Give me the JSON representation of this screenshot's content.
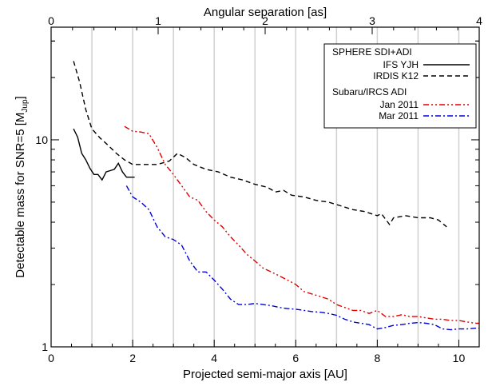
{
  "chart_data": {
    "type": "line",
    "title": "",
    "xlabel": "Projected semi-major axis [AU]",
    "x2label": "Angular separation [as]",
    "ylabel": "Detectable mass for SNR=5 [M",
    "ylabel_sub": "Jup",
    "ylabel_close": "]",
    "xlim": [
      0,
      10.5
    ],
    "x2lim": [
      0,
      4
    ],
    "ylim": [
      1,
      35
    ],
    "yscale": "log",
    "grid": "vertical",
    "xticks": [
      0,
      2,
      4,
      6,
      8,
      10
    ],
    "x2ticks": [
      0,
      1,
      2,
      3,
      4
    ],
    "yticks": [
      1,
      10
    ],
    "legend_position": "top-right",
    "legend_groups": [
      {
        "title": "SPHERE SDI+ADI",
        "entries": [
          "IFS YJH",
          "IRDIS K12"
        ]
      },
      {
        "title": "Subaru/IRCS ADI",
        "entries": [
          "Jan 2011",
          "Mar 2011"
        ]
      }
    ],
    "series": [
      {
        "name": "IFS YJH",
        "color": "#000000",
        "style": "solid",
        "points": [
          [
            0.55,
            11.3
          ],
          [
            0.65,
            10.3
          ],
          [
            0.75,
            8.6
          ],
          [
            0.85,
            8.0
          ],
          [
            0.95,
            7.3
          ],
          [
            1.05,
            6.8
          ],
          [
            1.15,
            6.8
          ],
          [
            1.25,
            6.4
          ],
          [
            1.35,
            7.0
          ],
          [
            1.45,
            7.1
          ],
          [
            1.55,
            7.2
          ],
          [
            1.65,
            7.7
          ],
          [
            1.75,
            7.0
          ],
          [
            1.85,
            6.6
          ],
          [
            1.95,
            6.6
          ],
          [
            2.05,
            6.6
          ]
        ]
      },
      {
        "name": "IRDIS K12",
        "color": "#000000",
        "style": "dashed",
        "points": [
          [
            0.55,
            24.0
          ],
          [
            0.7,
            19.0
          ],
          [
            0.85,
            14.0
          ],
          [
            1.0,
            11.3
          ],
          [
            1.2,
            10.2
          ],
          [
            1.4,
            9.4
          ],
          [
            1.6,
            8.6
          ],
          [
            1.8,
            8.0
          ],
          [
            2.0,
            7.6
          ],
          [
            2.3,
            7.6
          ],
          [
            2.6,
            7.6
          ],
          [
            2.9,
            7.9
          ],
          [
            3.1,
            8.6
          ],
          [
            3.3,
            8.2
          ],
          [
            3.5,
            7.6
          ],
          [
            3.8,
            7.2
          ],
          [
            4.1,
            7.0
          ],
          [
            4.4,
            6.6
          ],
          [
            4.7,
            6.4
          ],
          [
            5.0,
            6.1
          ],
          [
            5.3,
            5.9
          ],
          [
            5.5,
            5.6
          ],
          [
            5.7,
            5.7
          ],
          [
            5.9,
            5.4
          ],
          [
            6.2,
            5.3
          ],
          [
            6.5,
            5.1
          ],
          [
            6.8,
            5.0
          ],
          [
            7.1,
            4.8
          ],
          [
            7.4,
            4.6
          ],
          [
            7.7,
            4.5
          ],
          [
            8.0,
            4.3
          ],
          [
            8.1,
            4.4
          ],
          [
            8.3,
            3.9
          ],
          [
            8.4,
            4.2
          ],
          [
            8.7,
            4.3
          ],
          [
            9.0,
            4.2
          ],
          [
            9.3,
            4.2
          ],
          [
            9.5,
            4.1
          ],
          [
            9.7,
            3.8
          ]
        ]
      },
      {
        "name": "Jan 2011",
        "color": "#e00000",
        "style": "dash-dot-dot",
        "points": [
          [
            1.8,
            11.6
          ],
          [
            2.0,
            11.0
          ],
          [
            2.2,
            10.9
          ],
          [
            2.4,
            10.7
          ],
          [
            2.6,
            9.2
          ],
          [
            2.8,
            7.6
          ],
          [
            3.0,
            6.8
          ],
          [
            3.2,
            6.0
          ],
          [
            3.4,
            5.3
          ],
          [
            3.6,
            5.1
          ],
          [
            3.8,
            4.5
          ],
          [
            4.0,
            4.1
          ],
          [
            4.2,
            3.8
          ],
          [
            4.4,
            3.4
          ],
          [
            4.6,
            3.1
          ],
          [
            4.8,
            2.8
          ],
          [
            5.0,
            2.6
          ],
          [
            5.2,
            2.4
          ],
          [
            5.4,
            2.3
          ],
          [
            5.6,
            2.2
          ],
          [
            5.8,
            2.1
          ],
          [
            6.0,
            2.0
          ],
          [
            6.2,
            1.85
          ],
          [
            6.4,
            1.8
          ],
          [
            6.6,
            1.75
          ],
          [
            6.8,
            1.7
          ],
          [
            7.0,
            1.6
          ],
          [
            7.2,
            1.55
          ],
          [
            7.4,
            1.5
          ],
          [
            7.6,
            1.5
          ],
          [
            7.8,
            1.45
          ],
          [
            8.0,
            1.5
          ],
          [
            8.2,
            1.4
          ],
          [
            8.4,
            1.4
          ],
          [
            8.6,
            1.43
          ],
          [
            8.8,
            1.4
          ],
          [
            9.0,
            1.4
          ],
          [
            9.2,
            1.38
          ],
          [
            9.4,
            1.36
          ],
          [
            9.6,
            1.36
          ],
          [
            9.8,
            1.34
          ],
          [
            10.0,
            1.34
          ],
          [
            10.2,
            1.32
          ],
          [
            10.4,
            1.3
          ],
          [
            10.5,
            1.3
          ]
        ]
      },
      {
        "name": "Mar 2011",
        "color": "#0000dd",
        "style": "dash-dot",
        "points": [
          [
            1.85,
            6.0
          ],
          [
            2.0,
            5.3
          ],
          [
            2.2,
            5.0
          ],
          [
            2.4,
            4.6
          ],
          [
            2.6,
            3.8
          ],
          [
            2.8,
            3.4
          ],
          [
            3.0,
            3.3
          ],
          [
            3.2,
            3.1
          ],
          [
            3.4,
            2.6
          ],
          [
            3.6,
            2.3
          ],
          [
            3.8,
            2.3
          ],
          [
            4.0,
            2.1
          ],
          [
            4.2,
            1.9
          ],
          [
            4.4,
            1.7
          ],
          [
            4.6,
            1.6
          ],
          [
            4.8,
            1.6
          ],
          [
            5.0,
            1.62
          ],
          [
            5.2,
            1.6
          ],
          [
            5.4,
            1.58
          ],
          [
            5.6,
            1.55
          ],
          [
            5.8,
            1.53
          ],
          [
            6.0,
            1.52
          ],
          [
            6.2,
            1.5
          ],
          [
            6.4,
            1.48
          ],
          [
            6.6,
            1.47
          ],
          [
            6.8,
            1.45
          ],
          [
            7.0,
            1.42
          ],
          [
            7.2,
            1.36
          ],
          [
            7.4,
            1.32
          ],
          [
            7.6,
            1.3
          ],
          [
            7.8,
            1.28
          ],
          [
            8.0,
            1.22
          ],
          [
            8.2,
            1.24
          ],
          [
            8.4,
            1.27
          ],
          [
            8.6,
            1.28
          ],
          [
            8.8,
            1.3
          ],
          [
            9.0,
            1.31
          ],
          [
            9.2,
            1.3
          ],
          [
            9.4,
            1.28
          ],
          [
            9.6,
            1.22
          ],
          [
            9.8,
            1.21
          ],
          [
            10.0,
            1.22
          ],
          [
            10.2,
            1.22
          ],
          [
            10.4,
            1.23
          ],
          [
            10.5,
            1.23
          ]
        ]
      }
    ]
  }
}
